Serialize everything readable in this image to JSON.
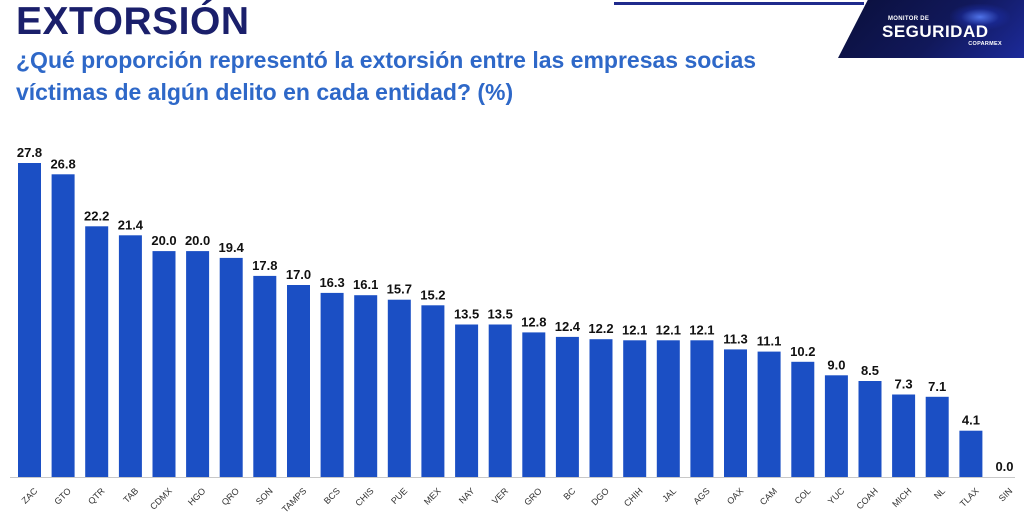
{
  "header": {
    "title": "EXTORSIÓN",
    "subtitle": "¿Qué proporción representó la extorsión entre las empresas socias víctimas de algún delito en cada entidad? (%)"
  },
  "logo": {
    "small_text": "MONITOR DE",
    "big_text": "SEGURIDAD",
    "sub_text": "COPARMEX"
  },
  "colors": {
    "bar": "#1b4fc4",
    "title": "#1a1f6b",
    "subtitle": "#2e68c8"
  },
  "chart_data": {
    "type": "bar",
    "title": "",
    "xlabel": "",
    "ylabel": "",
    "ylim": [
      0,
      28
    ],
    "grid": false,
    "data_labels": true,
    "categories": [
      "ZAC",
      "GTO",
      "QTR",
      "TAB",
      "CDMX",
      "HGO",
      "QRO",
      "SON",
      "TAMPS",
      "BCS",
      "CHIS",
      "PUE",
      "MEX",
      "NAY",
      "VER",
      "GRO",
      "BC",
      "DGO",
      "CHIH",
      "JAL",
      "AGS",
      "OAX",
      "CAM",
      "COL",
      "YUC",
      "COAH",
      "MICH",
      "NL",
      "TLAX",
      "SIN"
    ],
    "values": [
      27.8,
      26.8,
      22.2,
      21.4,
      20.0,
      20.0,
      19.4,
      17.8,
      17.0,
      16.3,
      16.1,
      15.7,
      15.2,
      13.5,
      13.5,
      12.8,
      12.4,
      12.2,
      12.1,
      12.1,
      12.1,
      11.3,
      11.1,
      10.2,
      9.0,
      8.5,
      7.3,
      7.1,
      4.1,
      0.0
    ],
    "value_labels": [
      "27.8",
      "26.8",
      "22.2",
      "21.4",
      "20.0",
      "20.0",
      "19.4",
      "17.8",
      "17.0",
      "16.3",
      "16.1",
      "15.7",
      "15.2",
      "13.5",
      "13.5",
      "12.8",
      "12.4",
      "12.2",
      "12.1",
      "12.1",
      "12.1",
      "11.3",
      "11.1",
      "10.2",
      "9.0",
      "8.5",
      "7.3",
      "7.1",
      "4.1",
      "0.0"
    ]
  }
}
